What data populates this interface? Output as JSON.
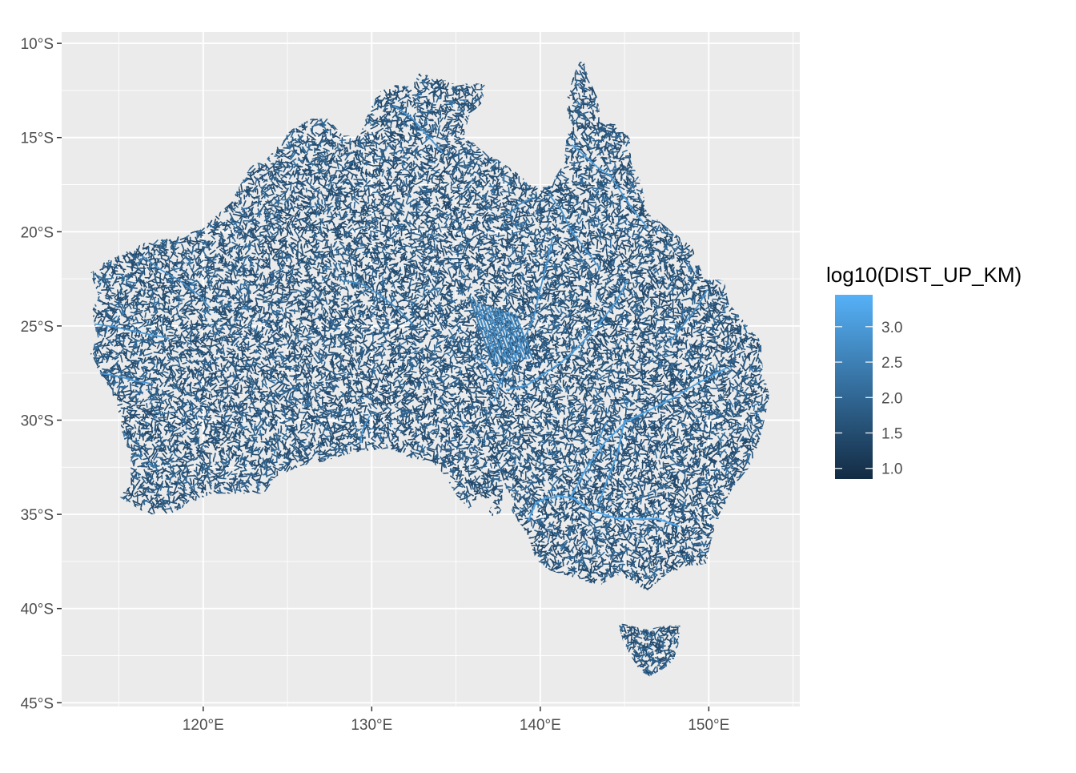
{
  "legend": {
    "title": "log10(DIST_UP_KM)",
    "labels": [
      "3.0",
      "2.5",
      "2.0",
      "1.5",
      "1.0"
    ],
    "values": [
      3.0,
      2.5,
      2.0,
      1.5,
      1.0
    ],
    "range": [
      0.85,
      3.45
    ],
    "color_low": "#132B43",
    "color_high": "#56B1F7"
  },
  "axes": {
    "y_ticks": [
      {
        "value": -10,
        "label": "10°S"
      },
      {
        "value": -15,
        "label": "15°S"
      },
      {
        "value": -20,
        "label": "20°S"
      },
      {
        "value": -25,
        "label": "25°S"
      },
      {
        "value": -30,
        "label": "30°S"
      },
      {
        "value": -35,
        "label": "35°S"
      },
      {
        "value": -40,
        "label": "40°S"
      },
      {
        "value": -45,
        "label": "45°S"
      }
    ],
    "x_ticks": [
      {
        "value": 120,
        "label": "120°E"
      },
      {
        "value": 130,
        "label": "130°E"
      },
      {
        "value": 140,
        "label": "140°E"
      },
      {
        "value": 150,
        "label": "150°E"
      }
    ],
    "lon_range": [
      111.6,
      155.4
    ],
    "lat_range": [
      -45.2,
      -9.4
    ]
  },
  "colors": {
    "panel": "#EBEBEB",
    "grid": "#FFFFFF",
    "axis_text": "#4D4D4D",
    "river_low": "#132B43",
    "river_high": "#56B1F7"
  }
}
